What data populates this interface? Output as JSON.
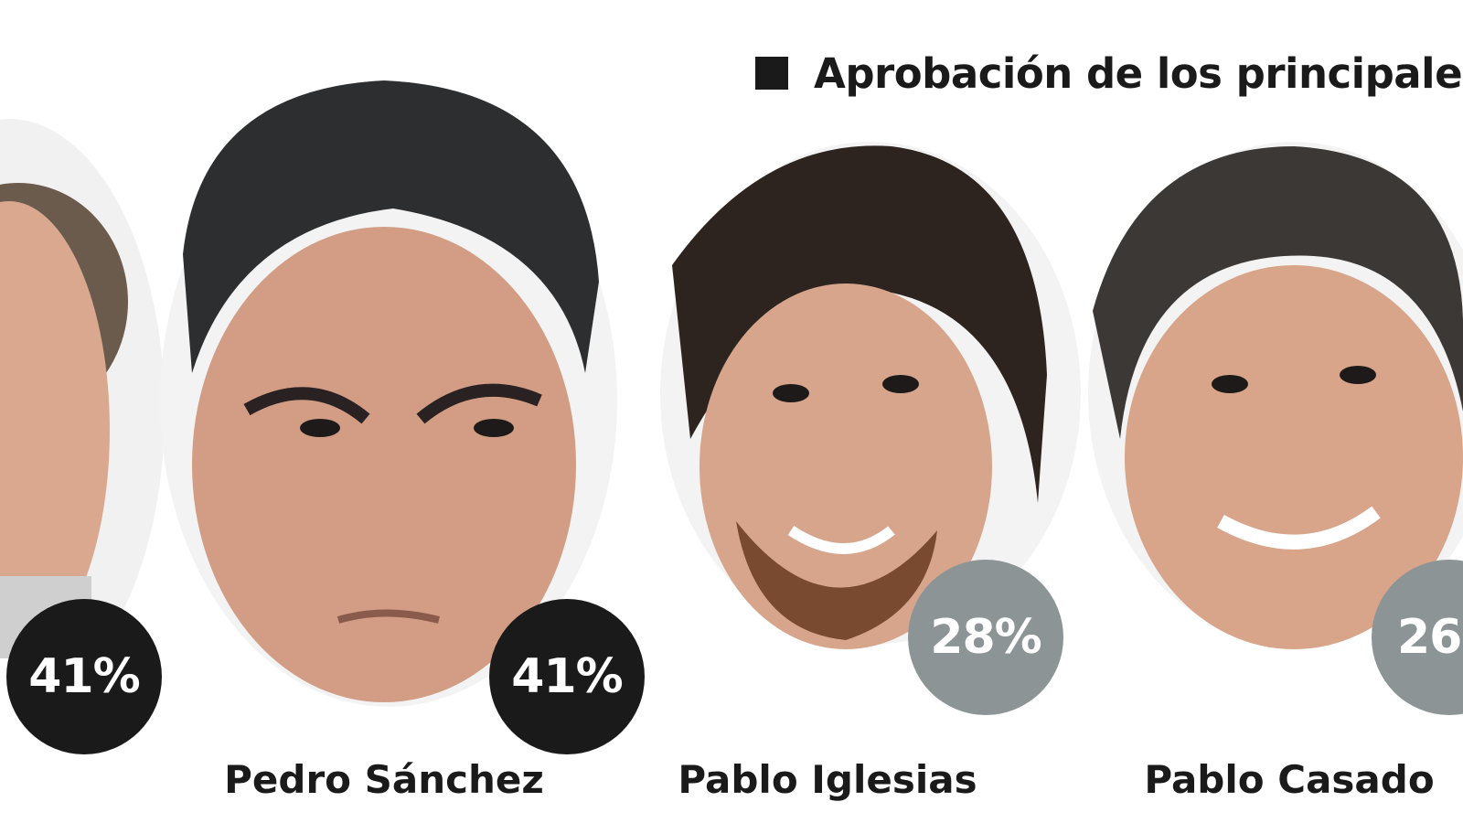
{
  "header": {
    "title": "Aprobación de los principale"
  },
  "leaders": [
    {
      "name": "",
      "approval": "41%",
      "badge_color": "#1a1a1a"
    },
    {
      "name": "Pedro Sánchez",
      "approval": "41%",
      "badge_color": "#1a1a1a"
    },
    {
      "name": "Pablo Iglesias",
      "approval": "28%",
      "badge_color": "#8c9496"
    },
    {
      "name": "Pablo Casado",
      "approval": "26",
      "badge_color": "#8c9496"
    }
  ]
}
